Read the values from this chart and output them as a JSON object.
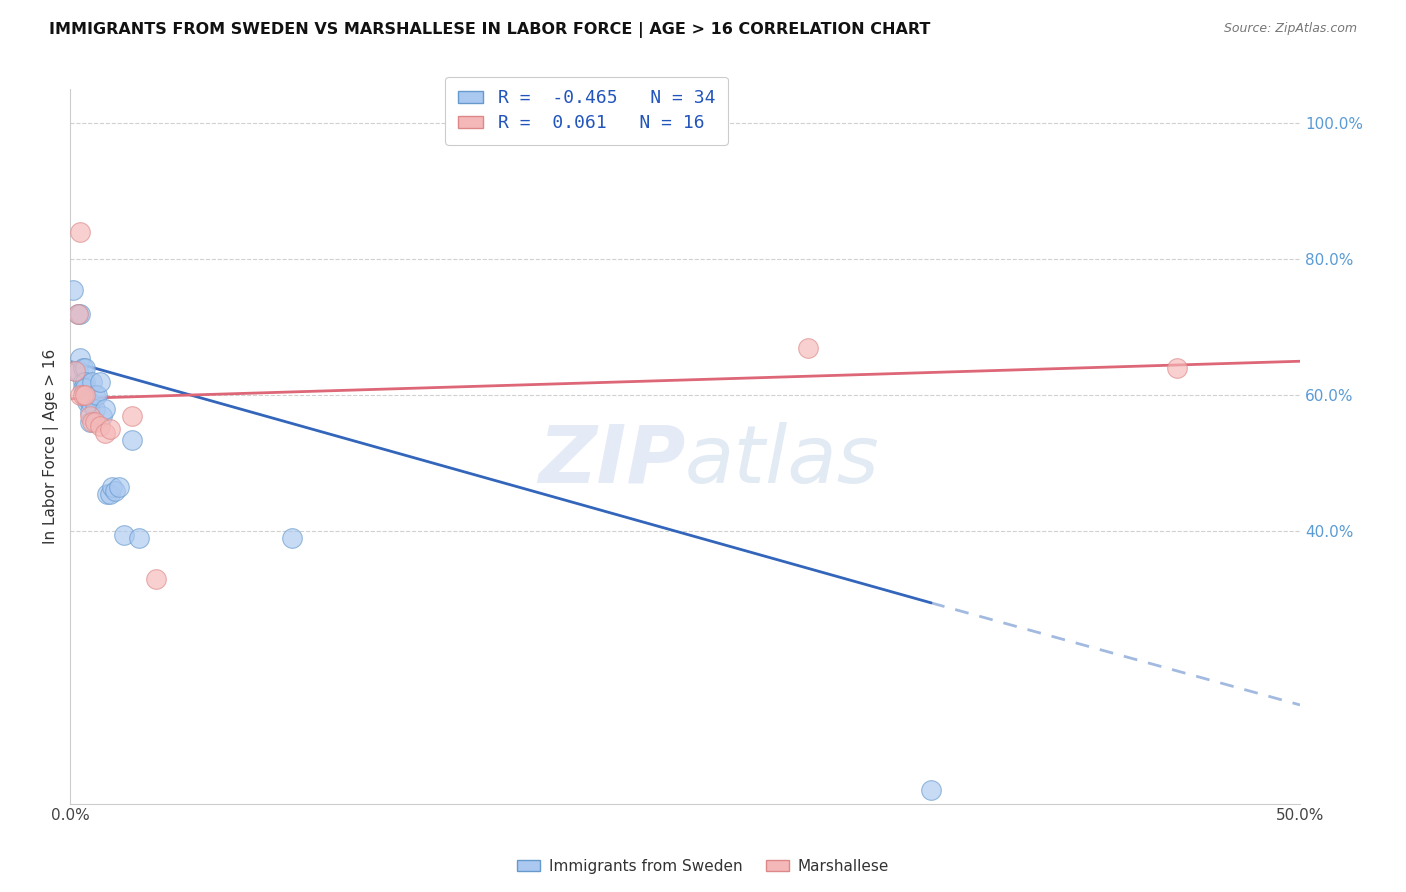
{
  "title": "IMMIGRANTS FROM SWEDEN VS MARSHALLESE IN LABOR FORCE | AGE > 16 CORRELATION CHART",
  "source": "Source: ZipAtlas.com",
  "ylabel": "In Labor Force | Age > 16",
  "xlim": [
    0.0,
    0.5
  ],
  "ylim": [
    0.0,
    1.05
  ],
  "xticks": [
    0.0,
    0.05,
    0.1,
    0.15,
    0.2,
    0.25,
    0.3,
    0.35,
    0.4,
    0.45,
    0.5
  ],
  "xticklabels": [
    "0.0%",
    "",
    "",
    "",
    "",
    "",
    "",
    "",
    "",
    "",
    "50.0%"
  ],
  "yticks_right": [
    0.4,
    0.6,
    0.8,
    1.0
  ],
  "yticklabels_right": [
    "40.0%",
    "60.0%",
    "80.0%",
    "100.0%"
  ],
  "grid_color": "#d0d0d0",
  "background_color": "#ffffff",
  "sweden_color": "#aac8f0",
  "sweden_edge_color": "#6699cc",
  "marshallese_color": "#f5b8b8",
  "marshallese_edge_color": "#dd8888",
  "sweden_line_color": "#3366bb",
  "marshallese_line_color": "#dd6677",
  "sweden_R": -0.465,
  "sweden_N": 34,
  "marshallese_R": 0.061,
  "marshallese_N": 16,
  "sweden_x": [
    0.001,
    0.002,
    0.003,
    0.003,
    0.004,
    0.004,
    0.005,
    0.005,
    0.005,
    0.006,
    0.006,
    0.006,
    0.007,
    0.007,
    0.008,
    0.008,
    0.008,
    0.009,
    0.01,
    0.01,
    0.011,
    0.012,
    0.013,
    0.014,
    0.015,
    0.016,
    0.017,
    0.018,
    0.02,
    0.022,
    0.025,
    0.028,
    0.09,
    0.35
  ],
  "sweden_y": [
    0.755,
    0.635,
    0.72,
    0.635,
    0.655,
    0.72,
    0.64,
    0.62,
    0.61,
    0.64,
    0.62,
    0.61,
    0.595,
    0.59,
    0.59,
    0.575,
    0.56,
    0.62,
    0.6,
    0.58,
    0.6,
    0.62,
    0.57,
    0.58,
    0.455,
    0.455,
    0.465,
    0.46,
    0.465,
    0.395,
    0.535,
    0.39,
    0.39,
    0.02
  ],
  "marshallese_x": [
    0.002,
    0.003,
    0.004,
    0.004,
    0.005,
    0.006,
    0.008,
    0.009,
    0.01,
    0.012,
    0.014,
    0.016,
    0.025,
    0.035,
    0.3,
    0.45
  ],
  "marshallese_y": [
    0.635,
    0.72,
    0.6,
    0.84,
    0.6,
    0.6,
    0.57,
    0.56,
    0.56,
    0.555,
    0.545,
    0.55,
    0.57,
    0.33,
    0.67,
    0.64
  ],
  "sweden_line_x0": 0.0,
  "sweden_line_y0": 0.65,
  "sweden_line_x1": 0.35,
  "sweden_line_y1": 0.295,
  "sweden_line_xdash": 0.5,
  "sweden_line_ydash": 0.145,
  "marsh_line_x0": 0.0,
  "marsh_line_y0": 0.595,
  "marsh_line_x1": 0.5,
  "marsh_line_y1": 0.65
}
